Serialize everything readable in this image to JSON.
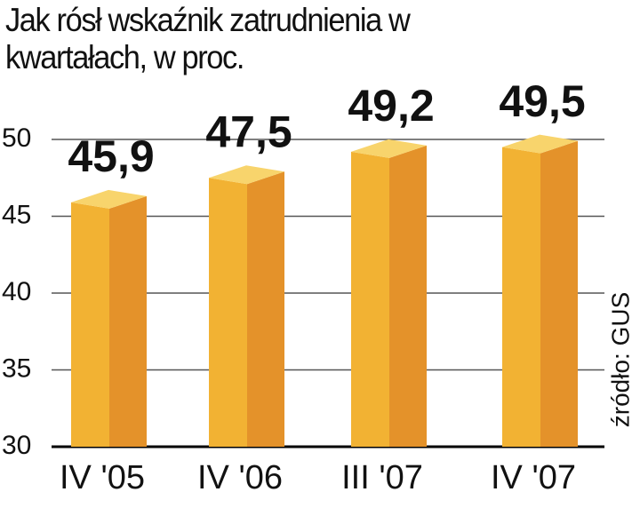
{
  "chart_data": {
    "type": "bar3d",
    "title": "Jak rósł wskaźnik zatrudnienia w kwartałach, w proc.",
    "source": "źródło: GUS",
    "categories": [
      "IV '05",
      "IV '06",
      "III '07",
      "IV '07"
    ],
    "values": [
      45.9,
      47.5,
      49.2,
      49.5
    ],
    "value_labels": [
      "45,9",
      "47,5",
      "49,2",
      "49,5"
    ],
    "colors": {
      "front": "#f2b233",
      "side": "#e4922a",
      "top": "#f8d46c"
    },
    "ylim": [
      30,
      50
    ],
    "yticks": [
      30,
      35,
      40,
      45,
      50
    ],
    "grid": true
  }
}
